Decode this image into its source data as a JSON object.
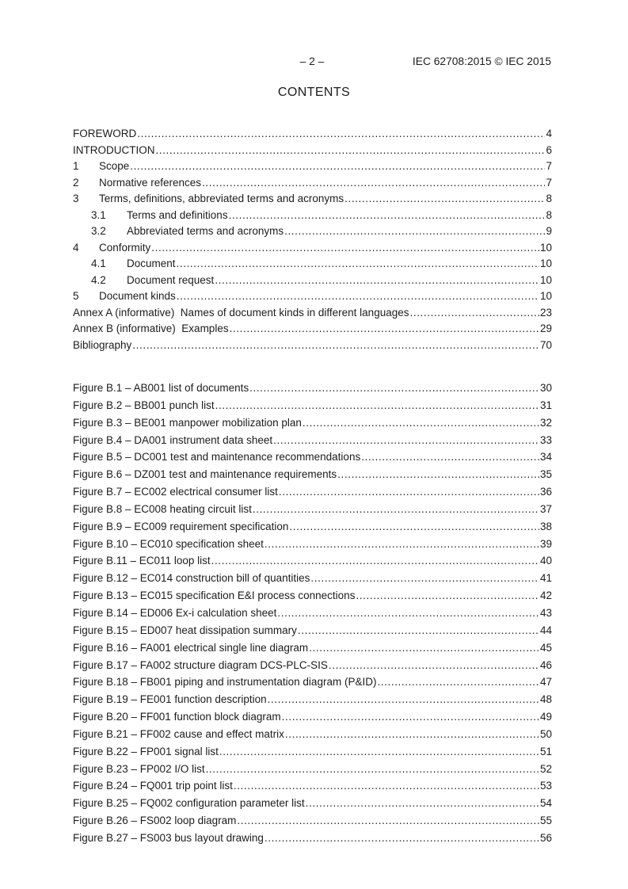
{
  "header": {
    "page_number": "– 2 –",
    "doc_ref": "IEC 62708:2015 © IEC 2015"
  },
  "title": "CONTENTS",
  "toc": {
    "sections": [
      {
        "num": "",
        "label": "FOREWORD",
        "page": "4",
        "level": 0
      },
      {
        "num": "",
        "label": "INTRODUCTION",
        "page": "6",
        "level": 0
      },
      {
        "num": "1",
        "label": "Scope",
        "page": "7",
        "level": 1
      },
      {
        "num": "2",
        "label": "Normative references",
        "page": "7",
        "level": 1
      },
      {
        "num": "3",
        "label": "Terms, definitions, abbreviated terms and acronyms",
        "page": "8",
        "level": 1
      },
      {
        "num": "3.1",
        "label": "Terms and definitions",
        "page": "8",
        "level": 2
      },
      {
        "num": "3.2",
        "label": "Abbreviated terms and acronyms",
        "page": "9",
        "level": 2
      },
      {
        "num": "4",
        "label": "Conformity",
        "page": "10",
        "level": 1
      },
      {
        "num": "4.1",
        "label": "Document",
        "page": "10",
        "level": 2
      },
      {
        "num": "4.2",
        "label": "Document request",
        "page": "10",
        "level": 2
      },
      {
        "num": "5",
        "label": "Document kinds",
        "page": "10",
        "level": 1
      },
      {
        "num": "",
        "label": "Annex A (informative)  Names of document kinds in different languages",
        "page": "23",
        "level": 0
      },
      {
        "num": "",
        "label": "Annex B (informative)  Examples",
        "page": "29",
        "level": 0
      },
      {
        "num": "",
        "label": "Bibliography",
        "page": "70",
        "level": 0
      }
    ],
    "figures": [
      {
        "label": "Figure B.1 – AB001 list of documents",
        "page": "30"
      },
      {
        "label": "Figure B.2 – BB001 punch list",
        "page": "31"
      },
      {
        "label": "Figure B.3 – BE001 manpower mobilization plan",
        "page": "32"
      },
      {
        "label": "Figure B.4 – DA001 instrument data sheet",
        "page": "33"
      },
      {
        "label": "Figure B.5 – DC001 test and maintenance recommendations",
        "page": "34"
      },
      {
        "label": "Figure B.6 – DZ001 test and maintenance requirements",
        "page": "35"
      },
      {
        "label": "Figure B.7 – EC002 electrical consumer list",
        "page": "36"
      },
      {
        "label": "Figure B.8 – EC008 heating circuit list",
        "page": "37"
      },
      {
        "label": "Figure B.9 – EC009 requirement specification",
        "page": "38"
      },
      {
        "label": "Figure B.10 – EC010 specification sheet",
        "page": "39"
      },
      {
        "label": "Figure B.11 – EC011 loop list",
        "page": "40"
      },
      {
        "label": "Figure B.12 – EC014 construction bill of quantities",
        "page": "41"
      },
      {
        "label": "Figure B.13 – EC015 specification E&I process connections",
        "page": "42"
      },
      {
        "label": "Figure B.14 – ED006 Ex-i calculation sheet",
        "page": "43"
      },
      {
        "label": "Figure B.15 – ED007 heat dissipation summary",
        "page": "44"
      },
      {
        "label": "Figure B.16 – FA001 electrical single line diagram",
        "page": "45"
      },
      {
        "label": "Figure B.17 – FA002 structure diagram DCS-PLC-SIS",
        "page": "46"
      },
      {
        "label": "Figure B.18 – FB001 piping and instrumentation diagram (P&ID)",
        "page": "47"
      },
      {
        "label": "Figure B.19 – FE001 function description",
        "page": "48"
      },
      {
        "label": "Figure B.20 – FF001 function block diagram",
        "page": "49"
      },
      {
        "label": "Figure B.21 – FF002 cause and effect matrix",
        "page": "50"
      },
      {
        "label": "Figure B.22 – FP001 signal list",
        "page": "51"
      },
      {
        "label": "Figure B.23 – FP002 I/O list",
        "page": "52"
      },
      {
        "label": "Figure B.24 – FQ001 trip point list",
        "page": "53"
      },
      {
        "label": "Figure B.25 – FQ002 configuration parameter list",
        "page": "54"
      },
      {
        "label": "Figure B.26 – FS002 loop diagram",
        "page": "55"
      },
      {
        "label": "Figure B.27 – FS003 bus layout drawing",
        "page": "56"
      }
    ]
  }
}
